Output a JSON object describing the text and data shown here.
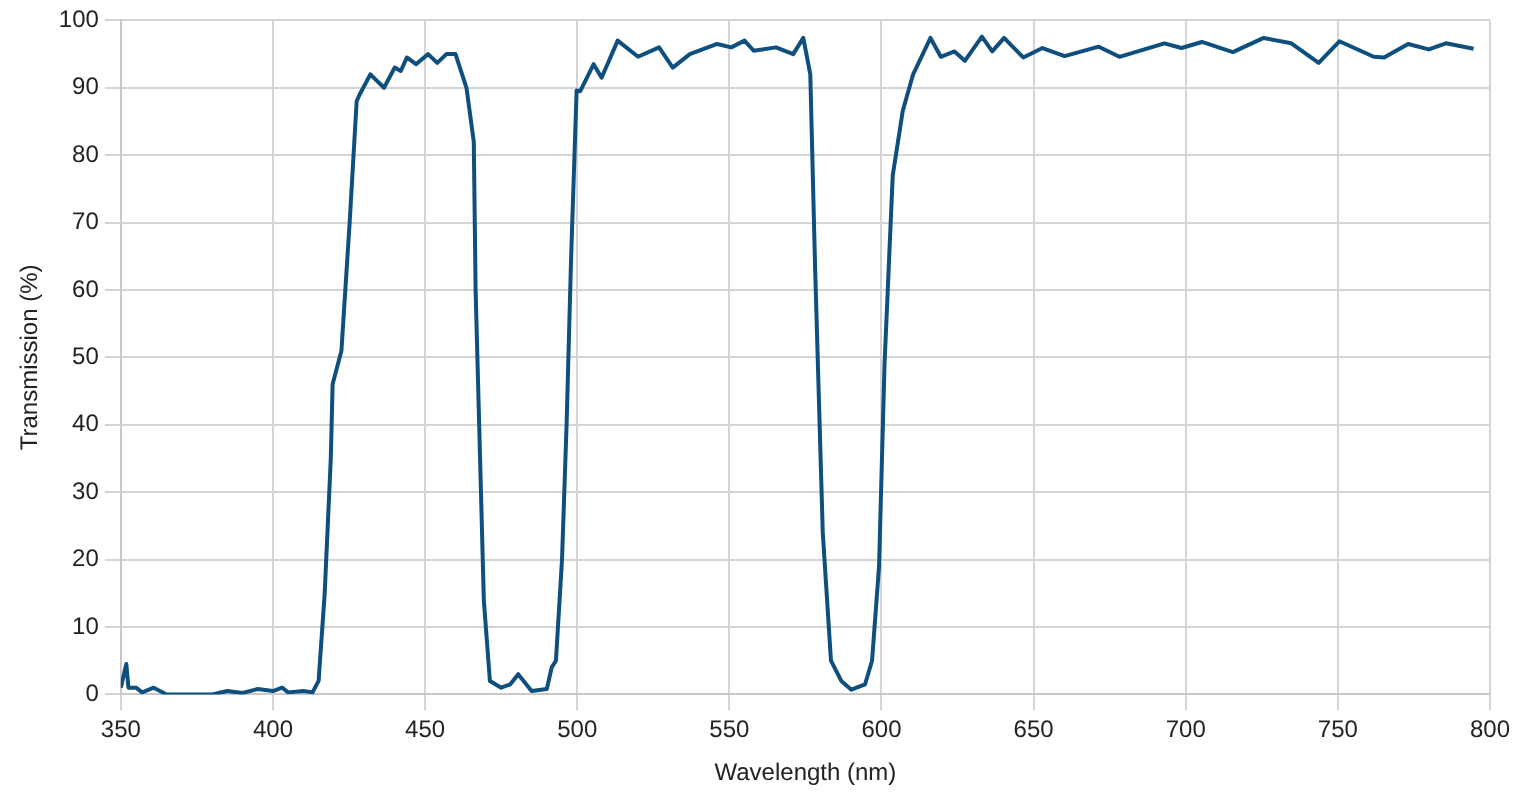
{
  "chart_data": {
    "type": "line",
    "xlabel": "Wavelength (nm)",
    "ylabel": "Transmission (%)",
    "xlim": [
      350,
      800
    ],
    "xticks": [
      350,
      400,
      450,
      500,
      550,
      600,
      650,
      700,
      750,
      800
    ],
    "ylim": [
      0,
      100
    ],
    "yticks": [
      0,
      10,
      20,
      30,
      40,
      50,
      60,
      70,
      80,
      90,
      100
    ],
    "grid": true,
    "legend": false,
    "marker": "none",
    "line_style": "solid",
    "series": [
      {
        "color": "#0e4f7e",
        "x": [
          350,
          351.8,
          352.5,
          355,
          357,
          360.8,
          365,
          380,
          385,
          390,
          395,
          400,
          403,
          405,
          410,
          413,
          415,
          417,
          419,
          419.6,
          422.5,
          425.2,
          427.5,
          428.5,
          432,
          436.5,
          440,
          442,
          444,
          447,
          451,
          454,
          457,
          460,
          463.6,
          466,
          466.6,
          469.3,
          471.3,
          475,
          478,
          480.6,
          485,
          490,
          491.6,
          493,
          495,
          496.5,
          498,
          499.8,
          501,
          505.4,
          508,
          513.3,
          520,
          526.9,
          531.4,
          537,
          546,
          550.6,
          555,
          558,
          565.3,
          571,
          574.3,
          576.6,
          578.2,
          580.7,
          583.4,
          586.8,
          590.1,
          594.6,
          596.9,
          599.2,
          601,
          603.7,
          607,
          610.4,
          616.1,
          619.5,
          624,
          627.4,
          633,
          636.4,
          640.3,
          646.6,
          652.9,
          660.2,
          671.4,
          678.2,
          693,
          698.6,
          705.3,
          715.5,
          725.6,
          734.7,
          743.7,
          750.5,
          761.8,
          765.2,
          773.1,
          779.9,
          785.5,
          794.6
        ],
        "values": [
          1,
          4.5,
          1,
          1,
          0.3,
          1,
          0,
          0,
          0.5,
          0.2,
          0.8,
          0.5,
          1,
          0.3,
          0.5,
          0.3,
          2,
          15,
          35,
          46,
          51,
          70,
          88,
          89,
          92,
          90,
          93,
          92.5,
          94.5,
          93.5,
          95,
          93.7,
          95,
          95,
          90,
          82,
          60,
          14,
          2,
          1,
          1.5,
          3,
          0.5,
          0.8,
          4,
          5,
          20,
          40,
          65,
          89.6,
          89.5,
          93.5,
          91.5,
          97,
          94.6,
          96,
          93,
          95,
          96.5,
          96,
          97,
          95.5,
          96,
          95,
          97.4,
          92,
          63,
          24,
          5,
          2,
          0.7,
          1.5,
          5,
          19,
          49,
          77,
          86.6,
          92,
          97.4,
          94.6,
          95.4,
          94,
          97.6,
          95.4,
          97.4,
          94.5,
          95.9,
          94.7,
          96.1,
          94.6,
          96.6,
          95.9,
          96.8,
          95.3,
          97.4,
          96.6,
          93.7,
          96.9,
          94.6,
          94.5,
          96.5,
          95.7,
          96.6,
          95.8
        ]
      }
    ]
  }
}
